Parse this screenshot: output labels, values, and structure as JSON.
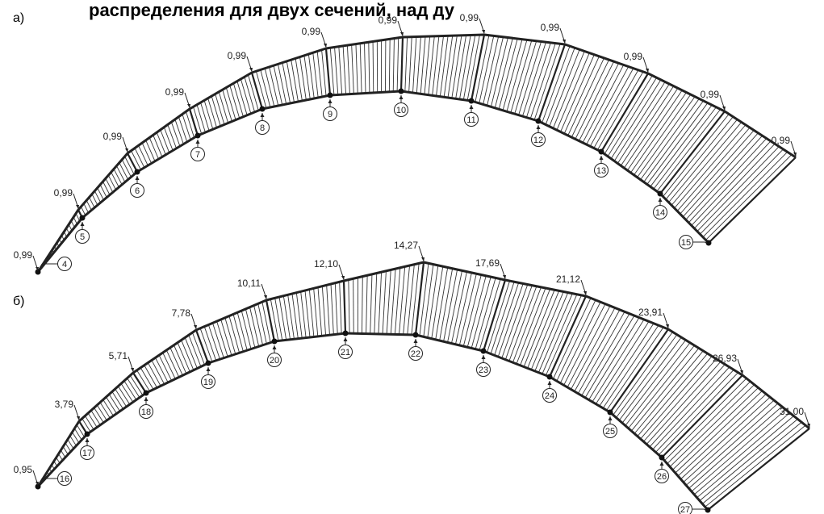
{
  "title_fragment": "распределения для двух сечений, над ду",
  "panels": [
    {
      "label": "а)",
      "values": [
        "0,99",
        "0,99",
        "0,99",
        "0,99",
        "0,99",
        "0,99",
        "0,99",
        "0,99",
        "0,99",
        "0,99",
        "0,99",
        "0,99"
      ],
      "nodes": [
        "4",
        "5",
        "6",
        "7",
        "8",
        "9",
        "10",
        "11",
        "12",
        "13",
        "14",
        "15"
      ]
    },
    {
      "label": "б)",
      "values": [
        "0,95",
        "3,79",
        "5,71",
        "7,78",
        "10,11",
        "12,10",
        "14,27",
        "17,69",
        "21,12",
        "23,91",
        "26,93",
        "31,00"
      ],
      "nodes": [
        "16",
        "17",
        "18",
        "19",
        "20",
        "21",
        "22",
        "23",
        "24",
        "25",
        "26",
        "27"
      ]
    }
  ]
}
